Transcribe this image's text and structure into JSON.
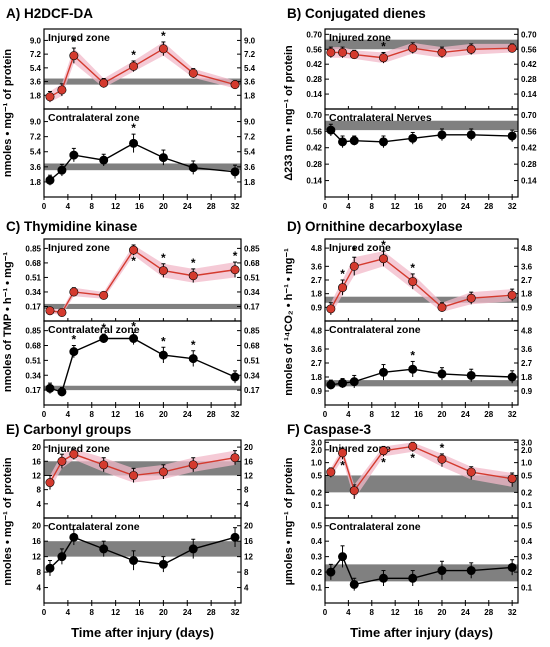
{
  "figure": {
    "xlabel": "Time after injury (days)"
  },
  "chart_data": [
    {
      "type": "line",
      "title": "A) H2DCF-DA",
      "ylabel": "nmoles • mg⁻¹ of protein",
      "xlim": [
        0,
        33
      ],
      "xticks": [
        0,
        4,
        8,
        12,
        16,
        20,
        24,
        28,
        32
      ],
      "x": [
        1,
        3,
        5,
        10,
        15,
        20,
        25,
        32
      ],
      "colors": {
        "injured": "#d43a2e",
        "contralateral": "#000000",
        "band": "#808080",
        "shade": "#f2b8c8"
      },
      "panels": [
        {
          "zone_label": "Injured zone",
          "series_color": "injured",
          "ylim": [
            0,
            10.5
          ],
          "yticks": [
            1.8,
            3.6,
            5.4,
            7.2,
            9.0
          ],
          "yticklabels": [
            "1.8",
            "3.6",
            "5.4",
            "7.2",
            "9.0"
          ],
          "band": [
            3.2,
            4.0
          ],
          "values": [
            1.6,
            2.5,
            7.0,
            3.4,
            5.6,
            7.9,
            4.7,
            3.2
          ],
          "errors": [
            0.7,
            0.8,
            1.0,
            0.6,
            0.7,
            0.9,
            0.6,
            0.5
          ],
          "stars": [
            0,
            0,
            1,
            0,
            1,
            1,
            0,
            0
          ]
        },
        {
          "zone_label": "Contralateral zone",
          "series_color": "contralateral",
          "ylim": [
            0,
            10.5
          ],
          "yticks": [
            1.8,
            3.6,
            5.4,
            7.2,
            9.0
          ],
          "yticklabels": [
            "1.8",
            "3.6",
            "5.4",
            "7.2",
            "9.0"
          ],
          "band": [
            3.2,
            4.0
          ],
          "values": [
            2.0,
            3.2,
            5.0,
            4.4,
            6.4,
            4.7,
            3.5,
            3.0
          ],
          "errors": [
            0.6,
            0.7,
            0.8,
            0.7,
            1.1,
            0.9,
            0.8,
            0.8
          ],
          "stars": [
            0,
            0,
            0,
            0,
            1,
            0,
            0,
            0
          ]
        }
      ]
    },
    {
      "type": "line",
      "title": "B) Conjugated dienes",
      "ylabel": "Δ233 nm • mg⁻¹ of protein",
      "xlim": [
        0,
        33
      ],
      "xticks": [
        0,
        4,
        8,
        12,
        16,
        20,
        24,
        28,
        32
      ],
      "x": [
        1,
        3,
        5,
        10,
        15,
        20,
        25,
        32
      ],
      "colors": {
        "injured": "#d43a2e",
        "contralateral": "#000000",
        "band": "#808080",
        "shade": "#f2b8c8"
      },
      "panels": [
        {
          "zone_label": "Injured zone",
          "series_color": "injured",
          "ylim": [
            0,
            0.75
          ],
          "yticks": [
            0.14,
            0.28,
            0.42,
            0.56,
            0.7
          ],
          "yticklabels": [
            "0.14",
            "0.28",
            "0.42",
            "0.56",
            "0.70"
          ],
          "band": [
            0.56,
            0.65
          ],
          "values": [
            0.53,
            0.53,
            0.51,
            0.48,
            0.57,
            0.53,
            0.56,
            0.57
          ],
          "errors": [
            0.05,
            0.05,
            0.04,
            0.05,
            0.05,
            0.05,
            0.05,
            0.04
          ],
          "stars": [
            0,
            0,
            0,
            1,
            0,
            0,
            0,
            0
          ]
        },
        {
          "zone_label": "Contralateral Nerves",
          "series_color": "contralateral",
          "ylim": [
            0,
            0.75
          ],
          "yticks": [
            0.14,
            0.28,
            0.42,
            0.56,
            0.7
          ],
          "yticklabels": [
            "0.14",
            "0.28",
            "0.42",
            "0.56",
            "0.70"
          ],
          "band": [
            0.57,
            0.65
          ],
          "values": [
            0.57,
            0.47,
            0.48,
            0.47,
            0.5,
            0.53,
            0.53,
            0.52
          ],
          "errors": [
            0.05,
            0.05,
            0.04,
            0.05,
            0.05,
            0.05,
            0.05,
            0.05
          ],
          "stars": [
            0,
            0,
            0,
            0,
            0,
            0,
            0,
            0
          ]
        }
      ]
    },
    {
      "type": "line",
      "title": "C) Thymidine kinase",
      "ylabel": "nmoles of TMP • h⁻¹ • mg⁻¹",
      "xlim": [
        0,
        33
      ],
      "xticks": [
        0,
        4,
        8,
        12,
        16,
        20,
        24,
        28,
        32
      ],
      "x": [
        1,
        3,
        5,
        10,
        15,
        20,
        25,
        32
      ],
      "colors": {
        "injured": "#d43a2e",
        "contralateral": "#000000",
        "band": "#808080",
        "shade": "#f2b8c8"
      },
      "panels": [
        {
          "zone_label": "Injured zone",
          "series_color": "injured",
          "ylim": [
            0,
            0.96
          ],
          "yticks": [
            0.17,
            0.34,
            0.51,
            0.68,
            0.85
          ],
          "yticklabels": [
            "0.17",
            "0.34",
            "0.51",
            "0.68",
            "0.85"
          ],
          "band": [
            0.14,
            0.2
          ],
          "values": [
            0.12,
            0.1,
            0.34,
            0.3,
            0.83,
            0.59,
            0.53,
            0.6
          ],
          "errors": [
            0.03,
            0.03,
            0.05,
            0.04,
            0.06,
            0.08,
            0.08,
            0.09
          ],
          "stars": [
            0,
            0,
            0,
            0,
            1,
            1,
            1,
            1
          ]
        },
        {
          "zone_label": "Contralateral zone",
          "series_color": "contralateral",
          "ylim": [
            0,
            0.96
          ],
          "yticks": [
            0.17,
            0.34,
            0.51,
            0.68,
            0.85
          ],
          "yticklabels": [
            "0.17",
            "0.34",
            "0.51",
            "0.68",
            "0.85"
          ],
          "band": [
            0.17,
            0.22
          ],
          "values": [
            0.19,
            0.15,
            0.61,
            0.76,
            0.76,
            0.57,
            0.53,
            0.32
          ],
          "errors": [
            0.06,
            0.05,
            0.07,
            0.05,
            0.07,
            0.09,
            0.09,
            0.07
          ],
          "stars": [
            0,
            0,
            1,
            1,
            1,
            1,
            1,
            0
          ]
        }
      ]
    },
    {
      "type": "line",
      "title": "D) Ornithine decarboxylase",
      "ylabel": "nmoles of ¹⁴CO₂ • h⁻¹ • mg⁻¹",
      "xlim": [
        0,
        33
      ],
      "xticks": [
        0,
        4,
        8,
        12,
        16,
        20,
        24,
        28,
        32
      ],
      "x": [
        1,
        3,
        5,
        10,
        15,
        20,
        25,
        32
      ],
      "colors": {
        "injured": "#d43a2e",
        "contralateral": "#000000",
        "band": "#808080",
        "shade": "#f2b8c8"
      },
      "panels": [
        {
          "zone_label": "Injured zone",
          "series_color": "injured",
          "ylim": [
            0,
            5.4
          ],
          "yticks": [
            0.9,
            1.8,
            2.7,
            3.6,
            4.8
          ],
          "yticklabels": [
            "0.9",
            "1.8",
            "2.7",
            "3.6",
            "4.8"
          ],
          "band": [
            1.2,
            1.6
          ],
          "values": [
            0.8,
            2.2,
            3.6,
            4.1,
            2.6,
            0.9,
            1.5,
            1.7
          ],
          "errors": [
            0.4,
            0.5,
            0.6,
            0.5,
            0.5,
            0.3,
            0.4,
            0.4
          ],
          "stars": [
            0,
            1,
            1,
            1,
            1,
            0,
            0,
            0
          ]
        },
        {
          "zone_label": "Contralateral zone",
          "series_color": "contralateral",
          "ylim": [
            0,
            5.4
          ],
          "yticks": [
            0.9,
            1.8,
            2.7,
            3.6,
            4.8
          ],
          "yticklabels": [
            "0.9",
            "1.8",
            "2.7",
            "3.6",
            "4.8"
          ],
          "band": [
            1.2,
            1.6
          ],
          "values": [
            1.3,
            1.4,
            1.5,
            2.1,
            2.3,
            2.0,
            1.9,
            1.8
          ],
          "errors": [
            0.3,
            0.3,
            0.4,
            0.5,
            0.5,
            0.4,
            0.4,
            0.4
          ],
          "stars": [
            0,
            0,
            0,
            0,
            1,
            0,
            0,
            0
          ]
        }
      ]
    },
    {
      "type": "line",
      "title": "E) Carbonyl groups",
      "ylabel": "nmoles • mg⁻¹ of protein",
      "xlim": [
        0,
        33
      ],
      "xticks": [
        0,
        4,
        8,
        12,
        16,
        20,
        24,
        28,
        32
      ],
      "x": [
        1,
        3,
        5,
        10,
        15,
        20,
        25,
        32
      ],
      "colors": {
        "injured": "#d43a2e",
        "contralateral": "#000000",
        "band": "#808080",
        "shade": "#f2b8c8"
      },
      "panels": [
        {
          "zone_label": "Injured zone",
          "series_color": "injured",
          "ylim": [
            0,
            22
          ],
          "yticks": [
            4,
            8,
            12,
            16,
            20
          ],
          "yticklabels": [
            "4",
            "8",
            "12",
            "16",
            "20"
          ],
          "band": [
            12,
            16
          ],
          "values": [
            10,
            16,
            18,
            15,
            12,
            13,
            15,
            17
          ],
          "errors": [
            2.0,
            2.0,
            1.5,
            2.0,
            2.0,
            2.0,
            2.0,
            2.0
          ],
          "stars": [
            0,
            0,
            0,
            0,
            0,
            0,
            0,
            0
          ]
        },
        {
          "zone_label": "Contralateral zone",
          "series_color": "contralateral",
          "ylim": [
            0,
            22
          ],
          "yticks": [
            4,
            8,
            12,
            16,
            20
          ],
          "yticklabels": [
            "4",
            "8",
            "12",
            "16",
            "20"
          ],
          "band": [
            12,
            16
          ],
          "values": [
            9,
            12,
            17,
            14,
            11,
            10,
            14,
            17
          ],
          "errors": [
            2.0,
            2.0,
            2.0,
            2.0,
            2.5,
            2.0,
            2.5,
            2.5
          ],
          "stars": [
            0,
            0,
            0,
            0,
            0,
            0,
            0,
            0
          ]
        }
      ]
    },
    {
      "type": "line",
      "title": "F) Caspase-3",
      "ylabel": "µmoles • mg⁻¹ of protein",
      "xlim": [
        0,
        33
      ],
      "xticks": [
        0,
        4,
        8,
        12,
        16,
        20,
        24,
        28,
        32
      ],
      "x": [
        1,
        3,
        5,
        10,
        15,
        20,
        25,
        32
      ],
      "colors": {
        "injured": "#d43a2e",
        "contralateral": "#000000",
        "band": "#808080",
        "shade": "#f2b8c8"
      },
      "panels": [
        {
          "zone_label": "Injured zone",
          "series_color": "injured",
          "ylim": [
            0.05,
            3.4
          ],
          "yticks": [
            0.1,
            0.2,
            0.5,
            1.0,
            2.0,
            3.0
          ],
          "yticklabels": [
            "0.1",
            "0.2",
            "0.5",
            "1.0",
            "2.0",
            "3.0"
          ],
          "log": true,
          "band": [
            0.2,
            0.5
          ],
          "values": [
            0.6,
            1.7,
            0.22,
            1.9,
            2.4,
            1.2,
            0.6,
            0.42
          ],
          "errors": [
            0.15,
            0.5,
            0.08,
            0.5,
            0.6,
            0.4,
            0.2,
            0.15
          ],
          "stars": [
            0,
            1,
            0,
            1,
            1,
            1,
            0,
            0
          ]
        },
        {
          "zone_label": "Contralateral zone",
          "series_color": "contralateral",
          "ylim": [
            0,
            0.55
          ],
          "yticks": [
            0.1,
            0.2,
            0.3,
            0.4,
            0.5
          ],
          "yticklabels": [
            "0.1",
            "0.2",
            "0.3",
            "0.4",
            "0.5"
          ],
          "band": [
            0.14,
            0.25
          ],
          "values": [
            0.2,
            0.3,
            0.12,
            0.16,
            0.16,
            0.21,
            0.21,
            0.23
          ],
          "errors": [
            0.05,
            0.07,
            0.04,
            0.05,
            0.05,
            0.06,
            0.05,
            0.05
          ],
          "stars": [
            0,
            0,
            0,
            0,
            0,
            0,
            0,
            0
          ]
        }
      ]
    }
  ]
}
